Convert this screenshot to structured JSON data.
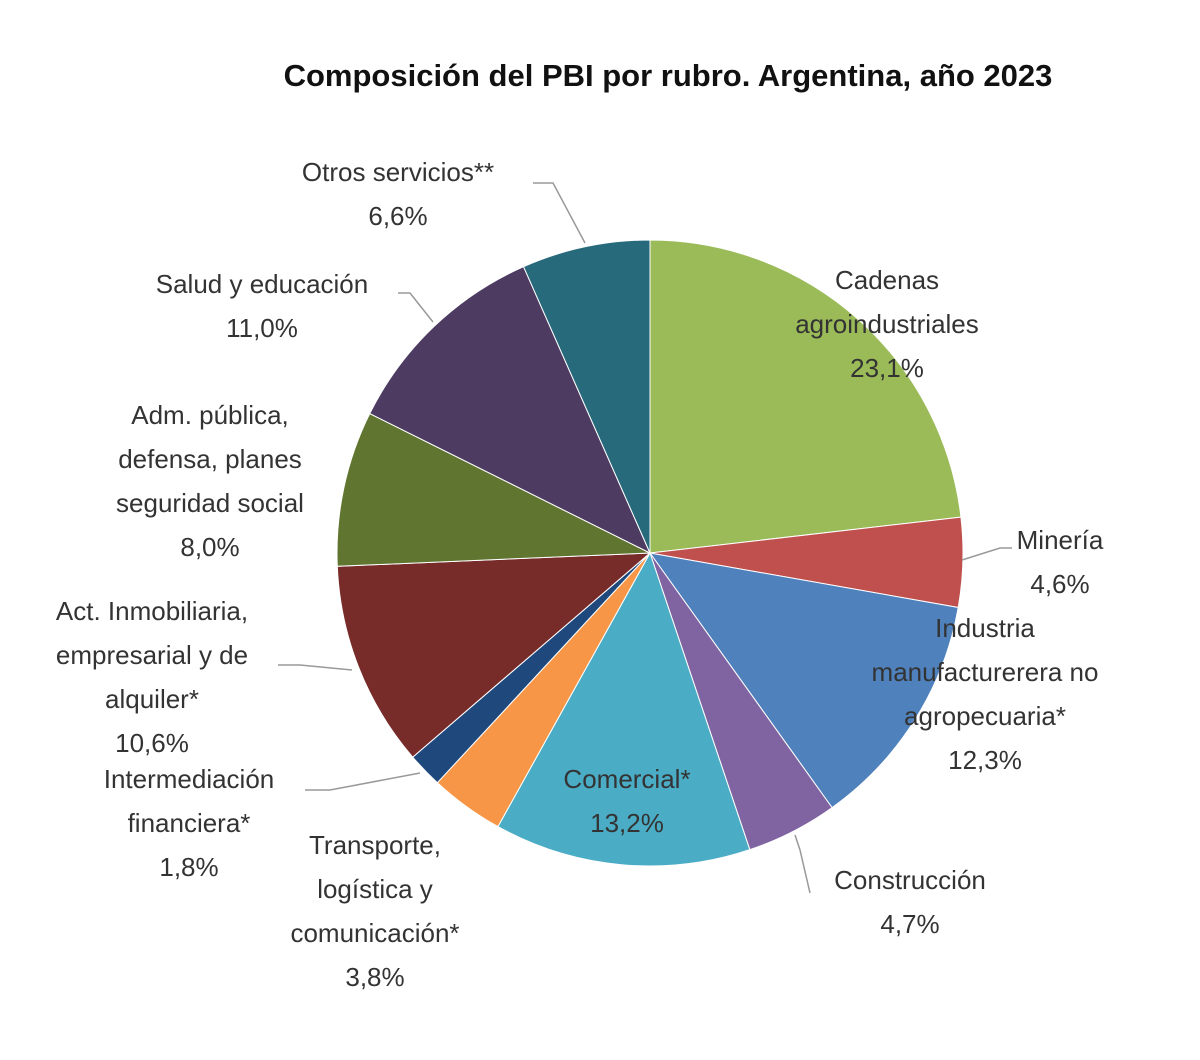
{
  "chart_data": {
    "type": "pie",
    "title": "Composición del PBI por rubro. Argentina, año 2023",
    "categories": [
      "Cadenas\nagroindustriales",
      "Minería",
      "Industria\nmanufacturerera no\nagropecuaria*",
      "Construcción",
      "Comercial*",
      "Transporte,\nlogística y\ncomunicación*",
      "Intermediación\nfinanciera*",
      "Act. Inmobiliaria,\nempresarial y de\nalquiler*",
      "Adm. pública,\ndefensa, planes\nseguridad social",
      "Salud y educación",
      "Otros servicios**"
    ],
    "values": [
      23.1,
      4.6,
      12.3,
      4.7,
      13.2,
      3.8,
      1.8,
      10.6,
      8.0,
      11.0,
      6.6
    ],
    "value_labels": [
      "23,1%",
      "4,6%",
      "12,3%",
      "4,7%",
      "13,2%",
      "3,8%",
      "1,8%",
      "10,6%",
      "8,0%",
      "11,0%",
      "6,6%"
    ],
    "colors": [
      "#9bbb59",
      "#c0504d",
      "#4f81bd",
      "#8064a2",
      "#4bacc6",
      "#f79646",
      "#1f497d",
      "#772c2a",
      "#5f7530",
      "#4d3b62",
      "#276a7c"
    ]
  }
}
